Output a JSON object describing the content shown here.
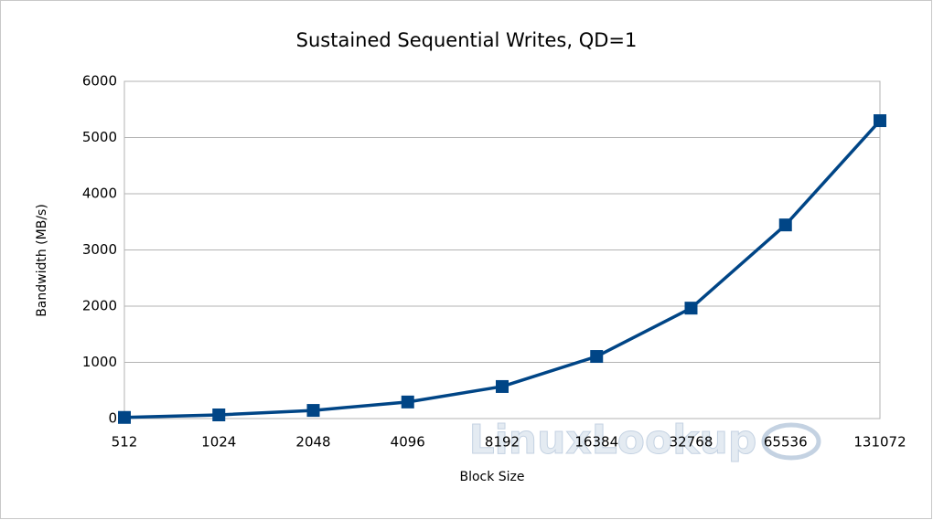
{
  "chart_data": {
    "type": "line",
    "title": "Sustained Sequential Writes, QD=1",
    "x_label": "Block Size",
    "y_label": "Bandwidth (MB/s)",
    "categories": [
      "512",
      "1024",
      "2048",
      "4096",
      "8192",
      "16384",
      "32768",
      "65536",
      "131072"
    ],
    "series": [
      {
        "name": "Bandwidth",
        "color": "#004586",
        "values": [
          20,
          65,
          145,
          295,
          570,
          1105,
          1965,
          3445,
          5300
        ]
      }
    ],
    "ylim": [
      0,
      6000
    ],
    "yticks": [
      0,
      1000,
      2000,
      3000,
      4000,
      5000,
      6000
    ],
    "grid": true,
    "watermark": "LinuxLookup"
  }
}
